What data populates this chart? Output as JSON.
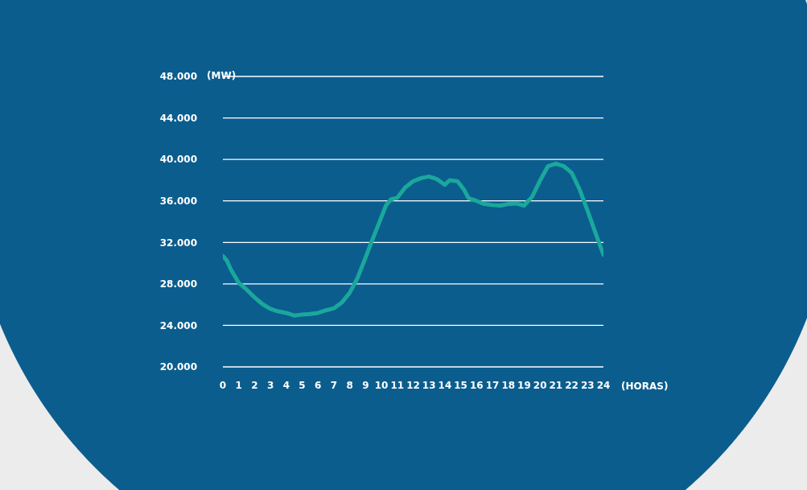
{
  "chart_data": {
    "type": "line",
    "xlabel": "(HORAS)",
    "ylabel": "(MW)",
    "grid": "y",
    "marker": "none",
    "line_style": "solid",
    "xlim": [
      0,
      24
    ],
    "xticks": [
      0,
      1,
      2,
      3,
      4,
      5,
      6,
      7,
      8,
      9,
      10,
      11,
      12,
      13,
      14,
      15,
      16,
      17,
      18,
      19,
      20,
      21,
      22,
      23,
      24
    ],
    "ylim": [
      20000,
      48000
    ],
    "yticks": [
      {
        "value": 20000,
        "label": "20.000"
      },
      {
        "value": 24000,
        "label": "24.000"
      },
      {
        "value": 28000,
        "label": "28.000"
      },
      {
        "value": 32000,
        "label": "32.000"
      },
      {
        "value": 36000,
        "label": "36.000"
      },
      {
        "value": 40000,
        "label": "40.000"
      },
      {
        "value": 44000,
        "label": "44.000"
      },
      {
        "value": 48000,
        "label": "48.000"
      }
    ],
    "x": [
      0,
      0.25,
      0.5,
      1,
      1.5,
      2,
      2.5,
      3,
      3.5,
      4,
      4.5,
      5,
      5.5,
      6,
      6.5,
      7,
      7.5,
      8,
      8.5,
      9,
      9.3,
      9.6,
      10,
      10.3,
      10.6,
      11,
      11.5,
      12,
      12.5,
      13,
      13.5,
      14,
      14.3,
      14.8,
      15.2,
      15.5,
      16,
      16.5,
      17,
      17.5,
      18,
      18.5,
      19,
      19.5,
      20,
      20.5,
      21,
      21.5,
      22,
      22.5,
      23,
      23.5,
      24
    ],
    "series": [
      {
        "color": "#1aa89c",
        "values": [
          30700,
          30250,
          29400,
          28100,
          27450,
          26700,
          26050,
          25600,
          25350,
          25200,
          24950,
          25050,
          25100,
          25200,
          25450,
          25650,
          26200,
          27150,
          28600,
          30550,
          31750,
          32900,
          34450,
          35600,
          36150,
          36300,
          37300,
          37900,
          38200,
          38350,
          38100,
          37550,
          38000,
          37900,
          37100,
          36250,
          36000,
          35700,
          35600,
          35550,
          35700,
          35750,
          35550,
          36400,
          37950,
          39350,
          39600,
          39350,
          38700,
          37100,
          35050,
          32900,
          30800
        ]
      }
    ]
  }
}
